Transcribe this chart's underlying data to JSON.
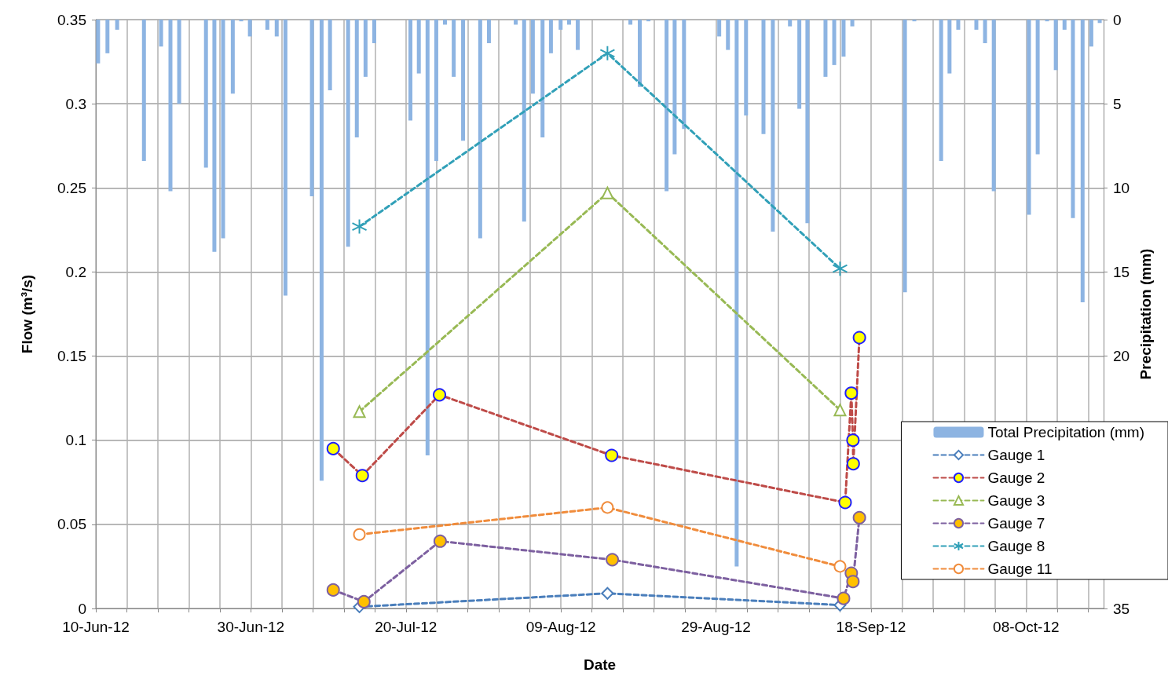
{
  "chart_data": {
    "type": "line",
    "xlabel": "Date",
    "ylabel": "Flow (m³/s)",
    "y2label": "Precipitation (mm)",
    "xlim": [
      "--06-10",
      "--10-18"
    ],
    "xticks": [
      {
        "value": "--06-10",
        "label": "10-Jun-12"
      },
      {
        "value": "--06-14",
        "label": null
      },
      {
        "value": "--06-18",
        "label": null
      },
      {
        "value": "--06-22",
        "label": null
      },
      {
        "value": "--06-26",
        "label": null
      },
      {
        "value": "--06-30",
        "label": "30-Jun-12"
      },
      {
        "value": "--07-04",
        "label": null
      },
      {
        "value": "--07-08",
        "label": null
      },
      {
        "value": "--07-12",
        "label": null
      },
      {
        "value": "--07-16",
        "label": null
      },
      {
        "value": "--07-20",
        "label": "20-Jul-12"
      },
      {
        "value": "--07-24",
        "label": null
      },
      {
        "value": "--07-28",
        "label": null
      },
      {
        "value": "--08-01",
        "label": null
      },
      {
        "value": "--08-05",
        "label": null
      },
      {
        "value": "--08-09",
        "label": "09-Aug-12"
      },
      {
        "value": "--08-13",
        "label": null
      },
      {
        "value": "--08-17",
        "label": null
      },
      {
        "value": "--08-21",
        "label": null
      },
      {
        "value": "--08-25",
        "label": null
      },
      {
        "value": "--08-29",
        "label": "29-Aug-12"
      },
      {
        "value": "--09-02",
        "label": null
      },
      {
        "value": "--09-06",
        "label": null
      },
      {
        "value": "--09-10",
        "label": null
      },
      {
        "value": "--09-14",
        "label": null
      },
      {
        "value": "--09-18",
        "label": "18-Sep-12"
      },
      {
        "value": "--09-22",
        "label": null
      },
      {
        "value": "--09-26",
        "label": null
      },
      {
        "value": "--09-30",
        "label": null
      },
      {
        "value": "--10-04",
        "label": null
      },
      {
        "value": "--10-08",
        "label": "08-Oct-12"
      },
      {
        "value": "--10-12",
        "label": null
      },
      {
        "value": "--10-16",
        "label": null
      }
    ],
    "ylim": [
      0,
      0.35
    ],
    "yticks": [
      0,
      0.05,
      0.1,
      0.15,
      0.2,
      0.25,
      0.3,
      0.35
    ],
    "y2lim": [
      35,
      0
    ],
    "y2ticks": [
      0,
      5,
      10,
      15,
      20,
      35
    ],
    "grid": true,
    "legend": "bottom right",
    "line_style": "dashed",
    "series": [
      {
        "name": "Total Precipitation (mm)",
        "type": "bar",
        "axis": "y2",
        "color": "#8db4e2",
        "x": [
          "--06-10T07:00",
          "--06-11T12:00",
          "--06-12T18:00",
          "--06-16T05:00",
          "--06-18T10:00",
          "--06-19T15:00",
          "--06-20T18:00",
          "--06-24T05:00",
          "--06-25T07:00",
          "--06-26T10:00",
          "--06-27T16:00",
          "--06-28T18:00",
          "--06-29T21:00",
          "--07-02T03:00",
          "--07-03T08:00",
          "--07-04T11:00",
          "--07-07T21:00",
          "--07-09T03:00",
          "--07-10T05:00",
          "--07-12T13:00",
          "--07-13T16:00",
          "--07-14T19:00",
          "--07-15T22:00",
          "--07-20T14:00",
          "--07-21T16:00",
          "--07-22T19:00",
          "--07-23T22:00",
          "--07-25T01:00",
          "--07-26T04:00",
          "--07-27T09:00",
          "--07-29T14:00",
          "--07-30T17:00",
          "--08-03T04:00",
          "--08-04T06:00",
          "--08-05T09:00",
          "--08-06T15:00",
          "--08-07T17:00",
          "--08-08T23:00",
          "--08-10T01:00",
          "--08-11T04:00",
          "--08-17T23:00",
          "--08-19T04:00",
          "--08-20T07:00",
          "--08-22T15:00",
          "--08-23T16:00",
          "--08-24T21:00",
          "--08-29T10:00",
          "--08-30T13:00",
          "--08-31T16:00",
          "--09-01T21:00",
          "--09-04T03:00",
          "--09-05T08:00",
          "--09-07T13:00",
          "--09-08T18:00",
          "--09-09T19:00",
          "--09-12T03:00",
          "--09-13T06:00",
          "--09-14T11:00",
          "--09-15T14:00",
          "--09-22T09:00",
          "--09-23T14:00",
          "--09-27T01:00",
          "--09-28T03:00",
          "--09-29T06:00",
          "--10-01T14:00",
          "--10-02T17:00",
          "--10-03T20:00",
          "--10-08T09:00",
          "--10-09T12:00",
          "--10-10T17:00",
          "--10-11T20:00",
          "--10-12T23:00",
          "--10-14T01:00",
          "--10-15T07:00",
          "--10-16T10:00",
          "--10-17T12:00"
        ],
        "values": [
          2.6,
          2.0,
          0.6,
          8.4,
          1.6,
          10.2,
          5.0,
          8.8,
          13.8,
          13.0,
          4.4,
          0.1,
          1.0,
          0.6,
          1.0,
          16.4,
          10.5,
          27.4,
          4.2,
          13.5,
          7.0,
          3.4,
          1.4,
          6.0,
          3.2,
          25.9,
          8.4,
          0.3,
          3.4,
          7.2,
          13.0,
          1.4,
          0.3,
          12.0,
          4.4,
          7.0,
          2.0,
          0.6,
          0.3,
          1.8,
          0.3,
          4.0,
          0.1,
          10.2,
          8.0,
          6.5,
          1.0,
          1.8,
          32.5,
          5.7,
          6.8,
          12.6,
          0.4,
          5.3,
          12.1,
          3.4,
          2.7,
          2.2,
          0.4,
          16.2,
          0.1,
          8.4,
          3.2,
          0.6,
          0.6,
          1.4,
          10.2,
          11.6,
          8.0,
          0.1,
          3.0,
          0.6,
          11.8,
          16.8,
          1.6,
          0.2
        ]
      },
      {
        "name": "Gauge 1",
        "marker": "diamond",
        "color": "#4a7ebb",
        "x": [
          "--07-14",
          "--08-15",
          "--09-14"
        ],
        "values": [
          0.001,
          0.009,
          0.002
        ]
      },
      {
        "name": "Gauge 2",
        "marker": "circle",
        "color": "#be4b48",
        "x": [
          "--07-10T15:00",
          "--07-14T09:00",
          "--07-24T08:00",
          "--08-15T13:00",
          "--09-14T16:00",
          "--09-15T11:00",
          "--09-15T16:00",
          "--09-15T17:00",
          "--09-16T12:00"
        ],
        "values": [
          0.095,
          0.079,
          0.127,
          0.091,
          0.063,
          0.128,
          0.1,
          0.086,
          0.161
        ]
      },
      {
        "name": "Gauge 3",
        "marker": "triangle",
        "color": "#98b954",
        "x": [
          "--07-14",
          "--08-15",
          "--09-14"
        ],
        "values": [
          0.117,
          0.247,
          0.118
        ]
      },
      {
        "name": "Gauge 7",
        "marker": "circle",
        "color": "#7d60a0",
        "x": [
          "--07-10T15:00",
          "--07-14T14:00",
          "--07-24T10:00",
          "--08-15T15:00",
          "--09-14T11:00",
          "--09-15T11:00",
          "--09-15T16:00",
          "--09-16T12:00"
        ],
        "values": [
          0.011,
          0.004,
          0.04,
          0.029,
          0.006,
          0.021,
          0.016,
          0.054
        ]
      },
      {
        "name": "Gauge 8",
        "marker": "cross",
        "color": "#31a0b8",
        "x": [
          "--07-14",
          "--08-15",
          "--09-14"
        ],
        "values": [
          0.227,
          0.33,
          0.202
        ]
      },
      {
        "name": "Gauge 11",
        "marker": "circle",
        "color": "#f08c3c",
        "x": [
          "--07-14",
          "--08-15",
          "--09-14"
        ],
        "values": [
          0.044,
          0.06,
          0.025
        ]
      }
    ]
  }
}
